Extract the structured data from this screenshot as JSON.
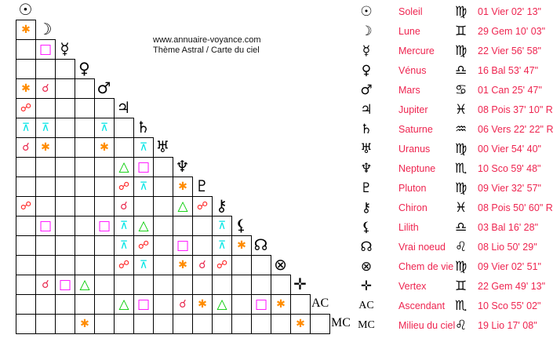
{
  "header": {
    "site": "www.annuaire-voyance.com",
    "subtitle": "Thème Astral / Carte du ciel"
  },
  "aspect_styles": {
    "conjunction": {
      "glyph": "☌",
      "color": "#e8284e"
    },
    "opposition": {
      "glyph": "☍",
      "color": "#ff1a1a"
    },
    "square": {
      "glyph": "□",
      "color": "#ff00ff"
    },
    "trine": {
      "glyph": "△",
      "color": "#00cc00"
    },
    "sextile": {
      "glyph": "✱",
      "color": "#ff8c00"
    },
    "quincunx": {
      "glyph": "⊼",
      "color": "#00e5e5"
    }
  },
  "bodies": [
    {
      "glyph": "☉",
      "name": "Soleil",
      "sign": "♍",
      "position": "01 Vier 02' 13\""
    },
    {
      "glyph": "☽",
      "name": "Lune",
      "sign": "♊",
      "position": "29 Gem 10' 03\""
    },
    {
      "glyph": "☿",
      "name": "Mercure",
      "sign": "♍",
      "position": "22 Vier 56' 58\""
    },
    {
      "glyph": "♀",
      "name": "Vénus",
      "sign": "♎",
      "position": "16 Bal 53' 47\""
    },
    {
      "glyph": "♂",
      "name": "Mars",
      "sign": "♋",
      "position": "01 Can 25' 47\""
    },
    {
      "glyph": "♃",
      "name": "Jupiter",
      "sign": "♓",
      "position": "08 Pois 37' 10\" R"
    },
    {
      "glyph": "♄",
      "name": "Saturne",
      "sign": "♒",
      "position": "06 Vers 22' 22\" R"
    },
    {
      "glyph": "♅",
      "name": "Uranus",
      "sign": "♍",
      "position": "00 Vier 54' 40\""
    },
    {
      "glyph": "♆",
      "name": "Neptune",
      "sign": "♏",
      "position": "10 Sco 59' 48\""
    },
    {
      "glyph": "♇",
      "name": "Pluton",
      "sign": "♍",
      "position": "09 Vier 32' 57\""
    },
    {
      "glyph": "⚷",
      "name": "Chiron",
      "sign": "♓",
      "position": "08 Pois 50' 60\" R"
    },
    {
      "glyph": "⚸",
      "name": "Lilith",
      "sign": "♎",
      "position": "03 Bal 16' 28\""
    },
    {
      "glyph": "☊",
      "name": "Vrai noeud",
      "sign": "♌",
      "position": "08 Lio 50' 29\""
    },
    {
      "glyph": "⊗",
      "name": "Chem de vie",
      "sign": "♍",
      "position": "09 Vier 02' 51\""
    },
    {
      "glyph": "✛",
      "name": "Vertex",
      "sign": "♊",
      "position": "22 Gem 49' 13\""
    },
    {
      "glyph": "AC",
      "name": "Ascendant",
      "sign": "♏",
      "position": "10 Sco 55' 02\""
    },
    {
      "glyph": "MC",
      "name": "Milieu du ciel",
      "sign": "♌",
      "position": "19 Lio 17' 08\""
    }
  ],
  "aspects": [
    [
      1,
      0,
      "sextile"
    ],
    [
      2,
      1,
      "square"
    ],
    [
      4,
      0,
      "sextile"
    ],
    [
      4,
      1,
      "conjunction"
    ],
    [
      5,
      0,
      "opposition"
    ],
    [
      6,
      0,
      "quincunx"
    ],
    [
      6,
      1,
      "quincunx"
    ],
    [
      6,
      4,
      "quincunx"
    ],
    [
      7,
      0,
      "conjunction"
    ],
    [
      7,
      1,
      "sextile"
    ],
    [
      7,
      4,
      "sextile"
    ],
    [
      7,
      6,
      "quincunx"
    ],
    [
      8,
      5,
      "trine"
    ],
    [
      8,
      6,
      "square"
    ],
    [
      9,
      5,
      "opposition"
    ],
    [
      9,
      6,
      "quincunx"
    ],
    [
      9,
      8,
      "sextile"
    ],
    [
      10,
      0,
      "opposition"
    ],
    [
      10,
      5,
      "conjunction"
    ],
    [
      10,
      8,
      "trine"
    ],
    [
      10,
      9,
      "opposition"
    ],
    [
      11,
      1,
      "square"
    ],
    [
      11,
      4,
      "square"
    ],
    [
      11,
      5,
      "quincunx"
    ],
    [
      11,
      6,
      "trine"
    ],
    [
      11,
      10,
      "quincunx"
    ],
    [
      12,
      5,
      "quincunx"
    ],
    [
      12,
      6,
      "opposition"
    ],
    [
      12,
      8,
      "square"
    ],
    [
      12,
      10,
      "quincunx"
    ],
    [
      12,
      11,
      "sextile"
    ],
    [
      13,
      5,
      "opposition"
    ],
    [
      13,
      6,
      "quincunx"
    ],
    [
      13,
      8,
      "sextile"
    ],
    [
      13,
      9,
      "conjunction"
    ],
    [
      13,
      10,
      "opposition"
    ],
    [
      14,
      1,
      "conjunction"
    ],
    [
      14,
      2,
      "square"
    ],
    [
      14,
      3,
      "trine"
    ],
    [
      15,
      5,
      "trine"
    ],
    [
      15,
      6,
      "square"
    ],
    [
      15,
      8,
      "conjunction"
    ],
    [
      15,
      9,
      "sextile"
    ],
    [
      15,
      10,
      "trine"
    ],
    [
      15,
      12,
      "square"
    ],
    [
      15,
      13,
      "sextile"
    ],
    [
      16,
      3,
      "sextile"
    ],
    [
      16,
      14,
      "sextile"
    ]
  ]
}
